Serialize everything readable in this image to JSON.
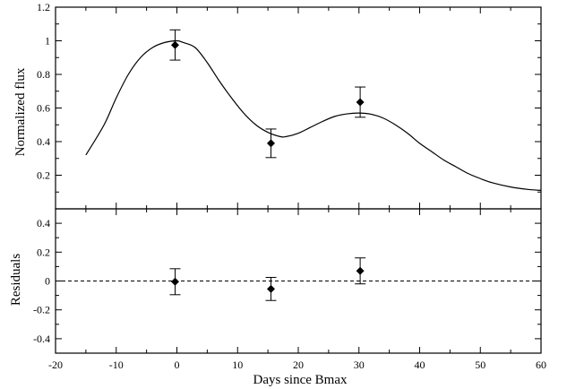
{
  "chart_data": [
    {
      "type": "line",
      "panel": "top",
      "title": "",
      "xlabel": "",
      "ylabel": "Normalized flux",
      "xlim": [
        -20,
        60
      ],
      "ylim": [
        0,
        1.2
      ],
      "yticks": [
        0.2,
        0.4,
        0.6,
        0.8,
        1,
        1.2
      ],
      "ytick_labels": [
        "0.2",
        "0.4",
        "0.6",
        "0.8",
        "1",
        "1.2"
      ],
      "grid": false,
      "series": [
        {
          "kind": "model-curve",
          "style": "solid",
          "points": [
            [
              -15,
              0.32
            ],
            [
              -12,
              0.5
            ],
            [
              -10,
              0.66
            ],
            [
              -8,
              0.8
            ],
            [
              -6,
              0.9
            ],
            [
              -4,
              0.96
            ],
            [
              -2,
              0.99
            ],
            [
              0,
              1.0
            ],
            [
              1,
              0.99
            ],
            [
              3,
              0.96
            ],
            [
              5,
              0.87
            ],
            [
              7,
              0.76
            ],
            [
              9,
              0.66
            ],
            [
              11,
              0.57
            ],
            [
              13,
              0.5
            ],
            [
              15,
              0.455
            ],
            [
              17,
              0.43
            ],
            [
              18,
              0.43
            ],
            [
              20,
              0.45
            ],
            [
              22,
              0.485
            ],
            [
              24,
              0.52
            ],
            [
              26,
              0.55
            ],
            [
              28,
              0.565
            ],
            [
              30,
              0.57
            ],
            [
              32,
              0.563
            ],
            [
              34,
              0.54
            ],
            [
              36,
              0.5
            ],
            [
              38,
              0.45
            ],
            [
              40,
              0.39
            ],
            [
              42,
              0.34
            ],
            [
              44,
              0.29
            ],
            [
              46,
              0.25
            ],
            [
              48,
              0.21
            ],
            [
              50,
              0.18
            ],
            [
              52,
              0.155
            ],
            [
              55,
              0.13
            ],
            [
              58,
              0.115
            ],
            [
              60,
              0.11
            ]
          ]
        },
        {
          "kind": "data-points",
          "marker": "diamond",
          "points": [
            {
              "x": -0.3,
              "y": 0.975,
              "err": 0.09
            },
            {
              "x": 15.5,
              "y": 0.39,
              "err": 0.085
            },
            {
              "x": 30.2,
              "y": 0.635,
              "err": 0.09
            }
          ]
        }
      ]
    },
    {
      "type": "scatter",
      "panel": "bottom",
      "title": "",
      "xlabel": "Days since Bmax",
      "ylabel": "Residuals",
      "xlim": [
        -20,
        60
      ],
      "ylim": [
        -0.5,
        0.5
      ],
      "xticks": [
        -20,
        -10,
        0,
        10,
        20,
        30,
        40,
        50,
        60
      ],
      "xtick_labels": [
        "-20",
        "-10",
        "0",
        "10",
        "20",
        "30",
        "40",
        "50",
        "60"
      ],
      "yticks": [
        -0.4,
        -0.2,
        0,
        0.2,
        0.4
      ],
      "ytick_labels": [
        "-0.4",
        "-0.2",
        "0",
        "0.2",
        "0.4"
      ],
      "grid": false,
      "reference_line": {
        "y": 0,
        "style": "dashed"
      },
      "series": [
        {
          "kind": "residual-points",
          "marker": "diamond",
          "points": [
            {
              "x": -0.3,
              "y": -0.005,
              "err": 0.09
            },
            {
              "x": 15.5,
              "y": -0.055,
              "err": 0.08
            },
            {
              "x": 30.2,
              "y": 0.07,
              "err": 0.09
            }
          ]
        }
      ]
    }
  ]
}
